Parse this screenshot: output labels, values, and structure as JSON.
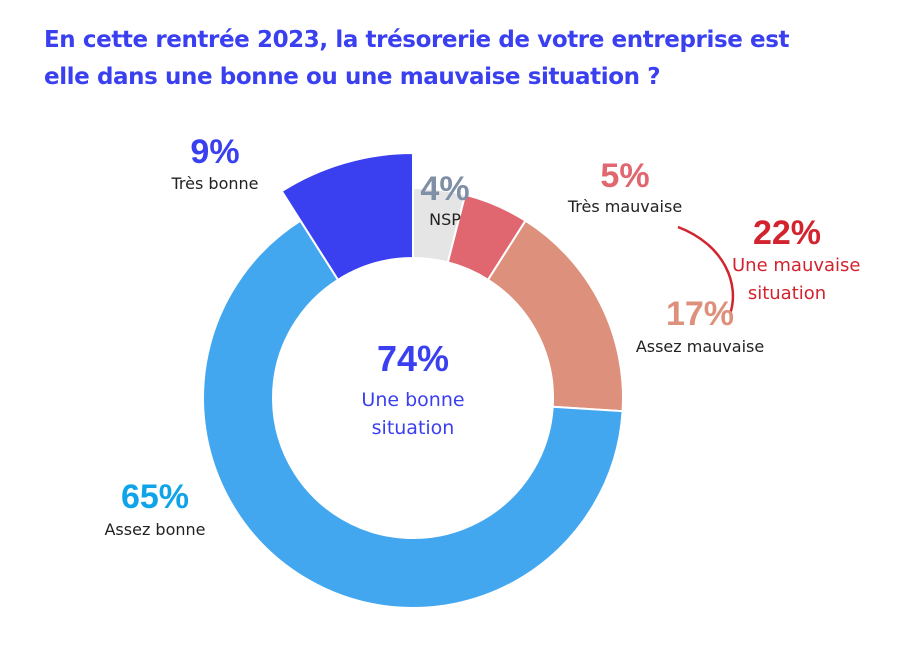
{
  "chart_data": {
    "type": "pie",
    "variant": "donut",
    "title": "En cette rentrée 2023, la trésorerie de votre entreprise est elle dans une bonne ou une mauvaise situation ?",
    "slices": [
      {
        "label": "NSP",
        "value": 4,
        "display": "4%",
        "color": "#e5e5e5",
        "text_color": "#7f8fa6"
      },
      {
        "label": "Très mauvaise",
        "value": 5,
        "display": "5%",
        "color": "#e0676f",
        "text_color": "#e0676f"
      },
      {
        "label": "Assez mauvaise",
        "value": 17,
        "display": "17%",
        "color": "#dd917c",
        "text_color": "#dd917c"
      },
      {
        "label": "Assez bonne",
        "value": 65,
        "display": "65%",
        "color": "#43a7f0",
        "text_color": "#0fa4e8"
      },
      {
        "label": "Très bonne",
        "value": 9,
        "display": "9%",
        "color": "#3a3ff0",
        "text_color": "#3a3ff0",
        "exploded": true
      }
    ],
    "center": {
      "value": "74%",
      "label_line1": "Une bonne",
      "label_line2": "situation"
    },
    "group": {
      "value": "22%",
      "label_line1": "Une mauvaise",
      "label_line2": "situation",
      "color": "#d3232e"
    }
  }
}
